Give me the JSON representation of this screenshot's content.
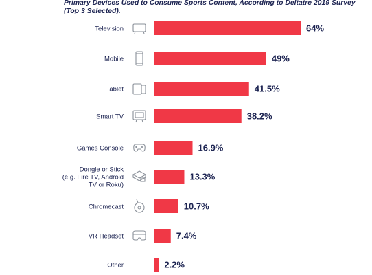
{
  "chart_data": {
    "type": "bar",
    "orientation": "horizontal",
    "title": "Primary Devices Used to Consume Sports Content, According to Deltatre 2019 Survey (Top 3 Selected).",
    "categories": [
      "Television",
      "Mobile",
      "Tablet",
      "Smart TV",
      "Games Console",
      "Dongle or Stick (e.g. Fire TV, Android TV or Roku)",
      "Chromecast",
      "VR Headset",
      "Other"
    ],
    "category_lines": [
      [
        "Television"
      ],
      [
        "Mobile"
      ],
      [
        "Tablet"
      ],
      [
        "Smart TV"
      ],
      [
        "Games Console"
      ],
      [
        "Dongle or Stick",
        "(e.g. Fire TV, Android",
        "TV or Roku)"
      ],
      [
        "Chromecast"
      ],
      [
        "VR Headset"
      ],
      [
        "Other"
      ]
    ],
    "values": [
      64,
      49,
      41.5,
      38.2,
      16.9,
      13.3,
      10.7,
      7.4,
      2.2
    ],
    "value_labels": [
      "64%",
      "49%",
      "41.5%",
      "38.2%",
      "16.9%",
      "13.3%",
      "10.7%",
      "7.4%",
      "2.2%"
    ],
    "icons": [
      "television-icon",
      "mobile-icon",
      "tablet-icon",
      "smart-tv-icon",
      "games-console-icon",
      "dongle-icon",
      "chromecast-icon",
      "vr-headset-icon",
      ""
    ],
    "unit": "%",
    "xlim": [
      0,
      64
    ],
    "grid": false,
    "legend": "none",
    "bar_color": "#f03846",
    "text_color": "#1d2452"
  }
}
